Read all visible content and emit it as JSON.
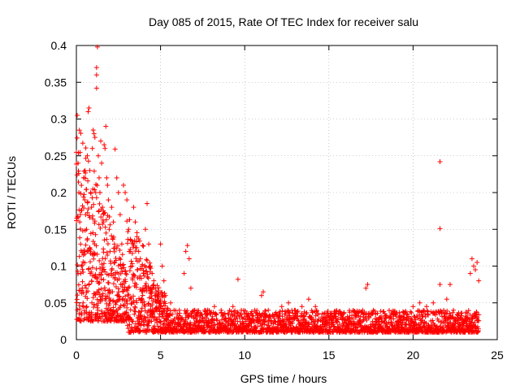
{
  "chart_data": {
    "type": "scatter",
    "title": "Day 085 of 2015, Rate Of TEC Index for receiver salu",
    "xlabel": "GPS time / hours",
    "ylabel": "ROTI / TECUs",
    "xlim": [
      0,
      25
    ],
    "ylim": [
      0,
      0.4
    ],
    "xticks": [
      0,
      5,
      10,
      15,
      20,
      25
    ],
    "xtick_labels": [
      "0",
      "5",
      "10",
      "15",
      "20",
      "25"
    ],
    "yticks": [
      0,
      0.05,
      0.1,
      0.15,
      0.2,
      0.25,
      0.3,
      0.35,
      0.4
    ],
    "ytick_labels": [
      "0",
      "0.05",
      "0.1",
      "0.15",
      "0.2",
      "0.25",
      "0.3",
      "0.35",
      "0.4"
    ],
    "grid": true,
    "marker": "+",
    "color": "#ff0000",
    "series": [
      {
        "name": "ROTI",
        "points": [
          [
            0.05,
            0.305
          ],
          [
            0.1,
            0.24
          ],
          [
            0.15,
            0.2
          ],
          [
            0.2,
            0.16
          ],
          [
            0.25,
            0.13
          ],
          [
            0.3,
            0.1
          ],
          [
            0.35,
            0.07
          ],
          [
            0.4,
            0.05
          ],
          [
            0.45,
            0.22
          ],
          [
            0.5,
            0.19
          ],
          [
            0.55,
            0.17
          ],
          [
            0.6,
            0.15
          ],
          [
            0.65,
            0.25
          ],
          [
            0.7,
            0.31
          ],
          [
            0.75,
            0.315
          ],
          [
            0.8,
            0.23
          ],
          [
            0.85,
            0.2
          ],
          [
            0.9,
            0.18
          ],
          [
            0.95,
            0.26
          ],
          [
            1.0,
            0.285
          ],
          [
            1.05,
            0.28
          ],
          [
            1.1,
            0.275
          ],
          [
            1.15,
            0.2
          ],
          [
            1.2,
            0.37
          ],
          [
            1.2,
            0.36
          ],
          [
            1.2,
            0.342
          ],
          [
            1.25,
            0.398
          ],
          [
            1.3,
            0.25
          ],
          [
            1.35,
            0.22
          ],
          [
            1.4,
            0.2
          ],
          [
            1.45,
            0.27
          ],
          [
            1.5,
            0.24
          ],
          [
            1.55,
            0.18
          ],
          [
            1.6,
            0.16
          ],
          [
            1.65,
            0.265
          ],
          [
            1.7,
            0.26
          ],
          [
            1.75,
            0.29
          ],
          [
            1.8,
            0.22
          ],
          [
            1.85,
            0.21
          ],
          [
            1.9,
            0.19
          ],
          [
            1.95,
            0.15
          ],
          [
            2.0,
            0.12
          ],
          [
            2.1,
            0.18
          ],
          [
            2.2,
            0.16
          ],
          [
            2.3,
            0.259
          ],
          [
            2.4,
            0.22
          ],
          [
            2.5,
            0.2
          ],
          [
            2.6,
            0.17
          ],
          [
            2.7,
            0.13
          ],
          [
            2.8,
            0.21
          ],
          [
            2.9,
            0.2
          ],
          [
            3.0,
            0.19
          ],
          [
            3.1,
            0.15
          ],
          [
            3.2,
            0.12
          ],
          [
            3.3,
            0.1
          ],
          [
            3.4,
            0.18
          ],
          [
            3.5,
            0.16
          ],
          [
            3.6,
            0.14
          ],
          [
            3.7,
            0.12
          ],
          [
            3.8,
            0.11
          ],
          [
            3.9,
            0.1
          ],
          [
            4.0,
            0.09
          ],
          [
            4.1,
            0.15
          ],
          [
            4.2,
            0.185
          ],
          [
            4.3,
            0.13
          ],
          [
            4.4,
            0.1
          ],
          [
            4.5,
            0.09
          ],
          [
            4.6,
            0.08
          ],
          [
            4.7,
            0.07
          ],
          [
            4.8,
            0.06
          ],
          [
            4.9,
            0.05
          ],
          [
            5.0,
            0.13
          ],
          [
            5.1,
            0.1
          ],
          [
            5.2,
            0.08
          ],
          [
            5.3,
            0.06
          ],
          [
            5.6,
            0.05
          ],
          [
            5.8,
            0.04
          ],
          [
            6.0,
            0.035
          ],
          [
            6.2,
            0.03
          ],
          [
            6.4,
            0.09
          ],
          [
            6.5,
            0.12
          ],
          [
            6.6,
            0.128
          ],
          [
            6.7,
            0.11
          ],
          [
            6.8,
            0.07
          ],
          [
            7.0,
            0.04
          ],
          [
            7.2,
            0.035
          ],
          [
            7.5,
            0.03
          ],
          [
            7.8,
            0.04
          ],
          [
            8.2,
            0.045
          ],
          [
            8.6,
            0.04
          ],
          [
            9.0,
            0.035
          ],
          [
            9.3,
            0.045
          ],
          [
            9.6,
            0.082
          ],
          [
            9.8,
            0.04
          ],
          [
            10.2,
            0.035
          ],
          [
            10.6,
            0.04
          ],
          [
            11.0,
            0.06
          ],
          [
            11.1,
            0.065
          ],
          [
            11.4,
            0.04
          ],
          [
            11.8,
            0.035
          ],
          [
            12.2,
            0.045
          ],
          [
            12.6,
            0.05
          ],
          [
            13.0,
            0.04
          ],
          [
            13.4,
            0.045
          ],
          [
            13.8,
            0.055
          ],
          [
            14.2,
            0.045
          ],
          [
            14.6,
            0.035
          ],
          [
            15.0,
            0.03
          ],
          [
            15.4,
            0.035
          ],
          [
            15.8,
            0.03
          ],
          [
            16.2,
            0.03
          ],
          [
            16.6,
            0.03
          ],
          [
            17.0,
            0.04
          ],
          [
            17.2,
            0.07
          ],
          [
            17.3,
            0.075
          ],
          [
            17.6,
            0.035
          ],
          [
            18.0,
            0.03
          ],
          [
            18.4,
            0.03
          ],
          [
            18.8,
            0.035
          ],
          [
            19.2,
            0.03
          ],
          [
            19.6,
            0.035
          ],
          [
            20.0,
            0.045
          ],
          [
            20.4,
            0.05
          ],
          [
            20.8,
            0.045
          ],
          [
            21.2,
            0.05
          ],
          [
            21.6,
            0.242
          ],
          [
            21.6,
            0.151
          ],
          [
            21.6,
            0.075
          ],
          [
            22.0,
            0.055
          ],
          [
            22.2,
            0.075
          ],
          [
            22.4,
            0.04
          ],
          [
            22.8,
            0.03
          ],
          [
            23.2,
            0.03
          ],
          [
            23.4,
            0.09
          ],
          [
            23.5,
            0.11
          ],
          [
            23.6,
            0.1
          ],
          [
            23.7,
            0.095
          ],
          [
            23.8,
            0.105
          ],
          [
            23.9,
            0.08
          ]
        ]
      }
    ]
  }
}
